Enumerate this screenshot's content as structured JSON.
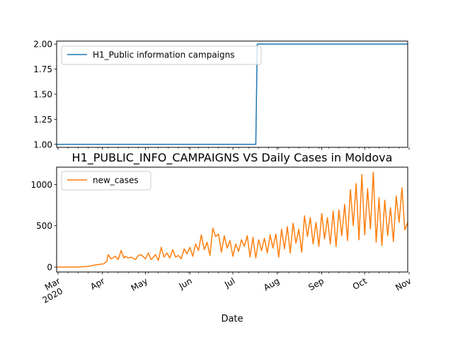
{
  "chart_data": [
    {
      "type": "line",
      "title": "",
      "xlabel": "",
      "ylabel": "",
      "xlim": [
        "2020-02-29",
        "2020-10-31"
      ],
      "ylim": [
        0.97,
        2.03
      ],
      "yticks": [
        1.0,
        1.25,
        1.5,
        1.75,
        2.0
      ],
      "ytick_labels": [
        "1.00",
        "1.25",
        "1.50",
        "1.75",
        "2.00"
      ],
      "legend": "upper-left",
      "series": [
        {
          "name": "H1_Public information campaigns",
          "color": "#1f77b4",
          "x": [
            "2020-02-29",
            "2020-07-17",
            "2020-07-18",
            "2020-10-31"
          ],
          "y": [
            1,
            1,
            2,
            2
          ]
        }
      ]
    },
    {
      "type": "line",
      "title": "H1_PUBLIC_INFO_CAMPAIGNS VS Daily Cases in Moldova",
      "xlabel": "Date",
      "ylabel": "",
      "xlim": [
        "2020-02-29",
        "2020-10-31"
      ],
      "ylim": [
        -60,
        1210
      ],
      "yticks": [
        0,
        500,
        1000
      ],
      "ytick_labels": [
        "0",
        "500",
        "1000"
      ],
      "xtick_labels": [
        "Mar\n2020",
        "Apr",
        "May",
        "Jun",
        "Jul",
        "Aug",
        "Sep",
        "Oct",
        "Nov"
      ],
      "xticks": [
        "2020-03-01",
        "2020-04-01",
        "2020-05-01",
        "2020-06-01",
        "2020-07-01",
        "2020-08-01",
        "2020-09-01",
        "2020-10-01",
        "2020-11-01"
      ],
      "legend": "upper-left",
      "series": [
        {
          "name": "new_cases",
          "color": "#ff7f0e",
          "x": [
            "2020-02-29",
            "2020-03-15",
            "2020-03-20",
            "2020-03-23",
            "2020-03-25",
            "2020-03-27",
            "2020-03-29",
            "2020-03-31",
            "2020-04-02",
            "2020-04-04",
            "2020-04-05",
            "2020-04-07",
            "2020-04-10",
            "2020-04-12",
            "2020-04-14",
            "2020-04-16",
            "2020-04-17",
            "2020-04-19",
            "2020-04-21",
            "2020-04-24",
            "2020-04-26",
            "2020-04-28",
            "2020-05-01",
            "2020-05-03",
            "2020-05-05",
            "2020-05-07",
            "2020-05-08",
            "2020-05-10",
            "2020-05-12",
            "2020-05-14",
            "2020-05-16",
            "2020-05-18",
            "2020-05-20",
            "2020-05-22",
            "2020-05-24",
            "2020-05-26",
            "2020-05-28",
            "2020-05-30",
            "2020-06-01",
            "2020-06-03",
            "2020-06-05",
            "2020-06-07",
            "2020-06-09",
            "2020-06-11",
            "2020-06-13",
            "2020-06-15",
            "2020-06-17",
            "2020-06-19",
            "2020-06-21",
            "2020-06-23",
            "2020-06-25",
            "2020-06-27",
            "2020-06-29",
            "2020-07-01",
            "2020-07-03",
            "2020-07-05",
            "2020-07-07",
            "2020-07-09",
            "2020-07-11",
            "2020-07-13",
            "2020-07-15",
            "2020-07-17",
            "2020-07-19",
            "2020-07-21",
            "2020-07-23",
            "2020-07-25",
            "2020-07-27",
            "2020-07-29",
            "2020-07-31",
            "2020-08-02",
            "2020-08-04",
            "2020-08-06",
            "2020-08-08",
            "2020-08-10",
            "2020-08-12",
            "2020-08-14",
            "2020-08-16",
            "2020-08-18",
            "2020-08-20",
            "2020-08-22",
            "2020-08-24",
            "2020-08-26",
            "2020-08-28",
            "2020-08-30",
            "2020-09-01",
            "2020-09-03",
            "2020-09-05",
            "2020-09-07",
            "2020-09-09",
            "2020-09-11",
            "2020-09-13",
            "2020-09-15",
            "2020-09-17",
            "2020-09-19",
            "2020-09-21",
            "2020-09-23",
            "2020-09-25",
            "2020-09-27",
            "2020-09-29",
            "2020-10-01",
            "2020-10-03",
            "2020-10-05",
            "2020-10-07",
            "2020-10-09",
            "2020-10-11",
            "2020-10-13",
            "2020-10-15",
            "2020-10-17",
            "2020-10-19",
            "2020-10-21",
            "2020-10-23",
            "2020-10-25",
            "2020-10-27",
            "2020-10-29",
            "2020-10-31"
          ],
          "y": [
            0,
            0,
            5,
            10,
            20,
            25,
            30,
            35,
            40,
            70,
            150,
            100,
            130,
            90,
            200,
            110,
            130,
            110,
            120,
            90,
            140,
            150,
            100,
            170,
            90,
            130,
            150,
            80,
            240,
            120,
            170,
            110,
            210,
            120,
            140,
            100,
            220,
            160,
            240,
            130,
            280,
            200,
            390,
            210,
            300,
            140,
            470,
            370,
            400,
            180,
            380,
            230,
            320,
            130,
            280,
            190,
            330,
            250,
            380,
            120,
            360,
            110,
            330,
            200,
            350,
            170,
            390,
            230,
            400,
            120,
            460,
            220,
            490,
            170,
            530,
            290,
            460,
            180,
            620,
            370,
            600,
            280,
            540,
            250,
            650,
            340,
            600,
            280,
            680,
            250,
            690,
            380,
            760,
            320,
            940,
            500,
            1010,
            330,
            1120,
            390,
            950,
            460,
            1150,
            300,
            840,
            260,
            810,
            380,
            720,
            310,
            860,
            540,
            960,
            450,
            540
          ]
        }
      ]
    }
  ]
}
